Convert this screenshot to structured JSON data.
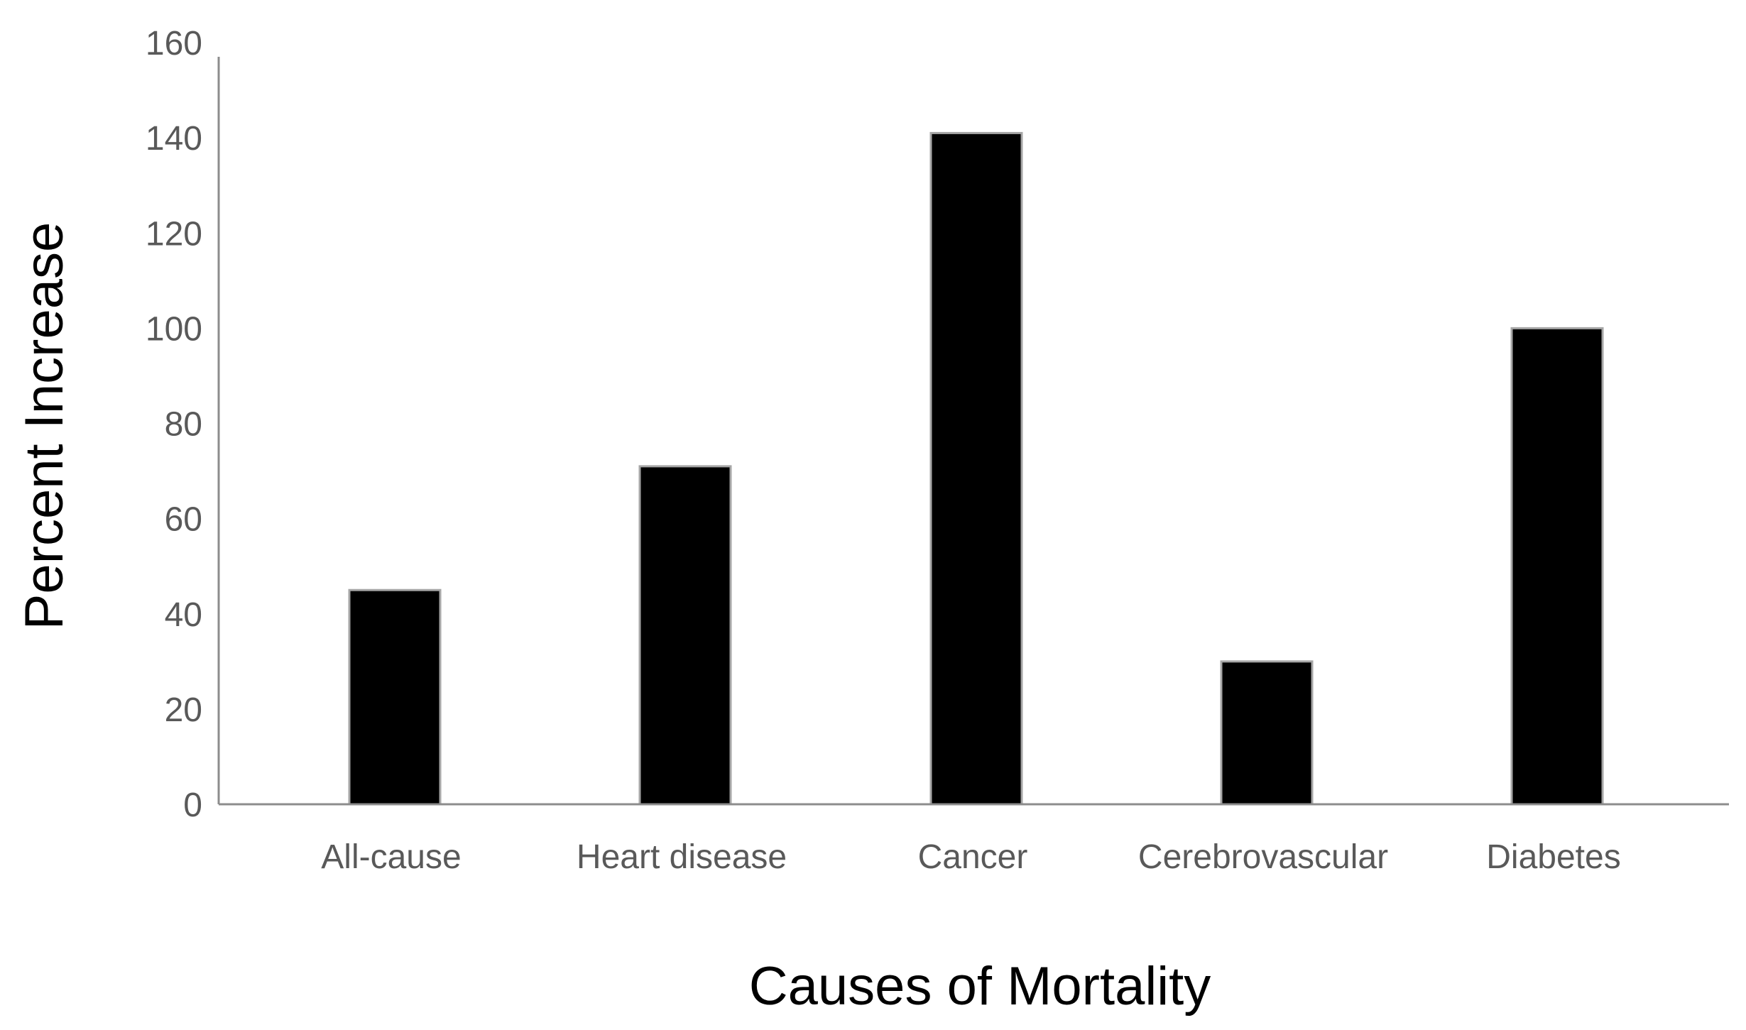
{
  "chart_data": {
    "type": "bar",
    "categories": [
      "All-cause",
      "Heart disease",
      "Cancer",
      "Cerebrovascular",
      "Diabetes"
    ],
    "values": [
      45,
      71,
      141,
      30,
      100
    ],
    "title": "",
    "xlabel": "Causes of Mortality",
    "ylabel": "Percent Increase",
    "ylim": [
      0,
      160
    ],
    "yticks": [
      0,
      20,
      40,
      60,
      80,
      100,
      120,
      140,
      160
    ],
    "grid": false,
    "legend": "none",
    "bar_color": "#000000",
    "bar_edge_color": "#a6a6a6",
    "axis_color": "#8c8c8c",
    "tick_label_color": "#595959"
  }
}
